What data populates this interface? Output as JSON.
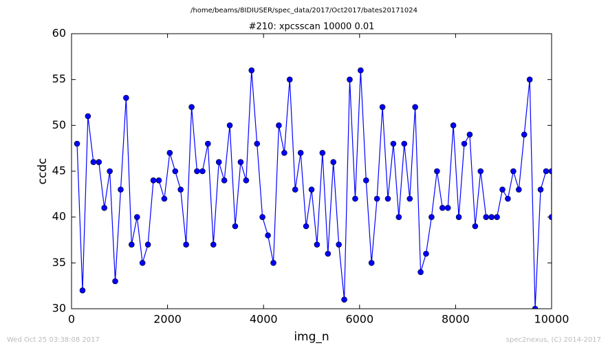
{
  "chart_data": {
    "type": "line",
    "suptitle": "/home/beams/8IDIUSER/spec_data/2017/Oct2017/bates20171024",
    "title": "#210: xpcsscan 10000 0.01",
    "x_label": "img_n",
    "y_label": "ccdc",
    "timestamp": "Wed Oct 25 03:38:08 2017",
    "credit": "spec2nexus, (C) 2014-2017",
    "x": [
      115,
      229,
      342,
      456,
      569,
      683,
      797,
      910,
      1024,
      1137,
      1251,
      1365,
      1478,
      1592,
      1705,
      1819,
      1933,
      2046,
      2160,
      2273,
      2387,
      2501,
      2614,
      2728,
      2841,
      2955,
      3069,
      3182,
      3296,
      3409,
      3523,
      3637,
      3750,
      3864,
      3977,
      4091,
      4205,
      4318,
      4432,
      4545,
      4659,
      4773,
      4886,
      5000,
      5113,
      5227,
      5341,
      5454,
      5568,
      5681,
      5795,
      5909,
      6022,
      6136,
      6249,
      6363,
      6477,
      6590,
      6704,
      6817,
      6931,
      7045,
      7158,
      7272,
      7385,
      7499,
      7613,
      7726,
      7840,
      7953,
      8067,
      8181,
      8294,
      8408,
      8521,
      8635,
      8749,
      8862,
      8976,
      9089,
      9203,
      9317,
      9430,
      9544,
      9657,
      9771,
      9885,
      9998,
      10000
    ],
    "series": [
      {
        "color": "#0000ff",
        "values": [
          48,
          32,
          51,
          46,
          46,
          41,
          45,
          33,
          43,
          53,
          37,
          40,
          35,
          37,
          44,
          44,
          42,
          47,
          45,
          43,
          37,
          52,
          45,
          45,
          48,
          37,
          46,
          44,
          50,
          39,
          46,
          44,
          56,
          48,
          40,
          38,
          35,
          50,
          47,
          55,
          43,
          47,
          39,
          43,
          37,
          47,
          36,
          46,
          37,
          31,
          55,
          42,
          56,
          44,
          35,
          42,
          52,
          42,
          48,
          40,
          48,
          42,
          52,
          34,
          36,
          40,
          45,
          41,
          41,
          50,
          40,
          48,
          49,
          39,
          45,
          40,
          40,
          40,
          43,
          42,
          45,
          43,
          49,
          55,
          30,
          43,
          45,
          45,
          40
        ]
      }
    ],
    "xlim": [
      0,
      10000
    ],
    "ylim": [
      30,
      60
    ],
    "xticks": [
      0,
      2000,
      4000,
      6000,
      8000,
      10000
    ],
    "yticks": [
      30,
      35,
      40,
      45,
      50,
      55,
      60
    ],
    "grid": false
  }
}
